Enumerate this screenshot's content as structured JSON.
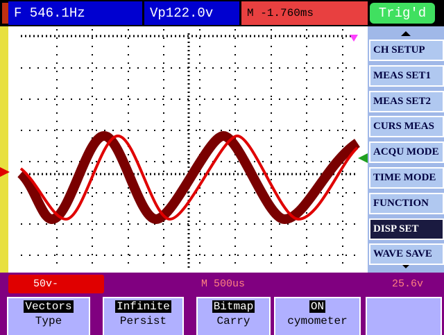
{
  "top_bar": {
    "frequency": "F 546.1Hz",
    "peak_voltage": "Vp122.0v",
    "time_offset": "M -1.760ms",
    "trigger_status": "Trig'd"
  },
  "menu": {
    "items": [
      "CH SETUP",
      "MEAS SET1",
      "MEAS SET2",
      "CURS MEAS",
      "ACQU MODE",
      "TIME MODE",
      "FUNCTION",
      "DISP SET",
      "WAVE SAVE"
    ],
    "selected": "DISP SET"
  },
  "status_bar": {
    "channel_scale": "50v-",
    "timebase": "M 500us",
    "trigger_level": "25.6v"
  },
  "softkeys": [
    {
      "value": "Vectors",
      "label": "Type"
    },
    {
      "value": "Infinite",
      "label": "Persist"
    },
    {
      "value": "Bitmap",
      "label": "Carry"
    },
    {
      "value": "ON",
      "label": "cymometer"
    }
  ]
}
